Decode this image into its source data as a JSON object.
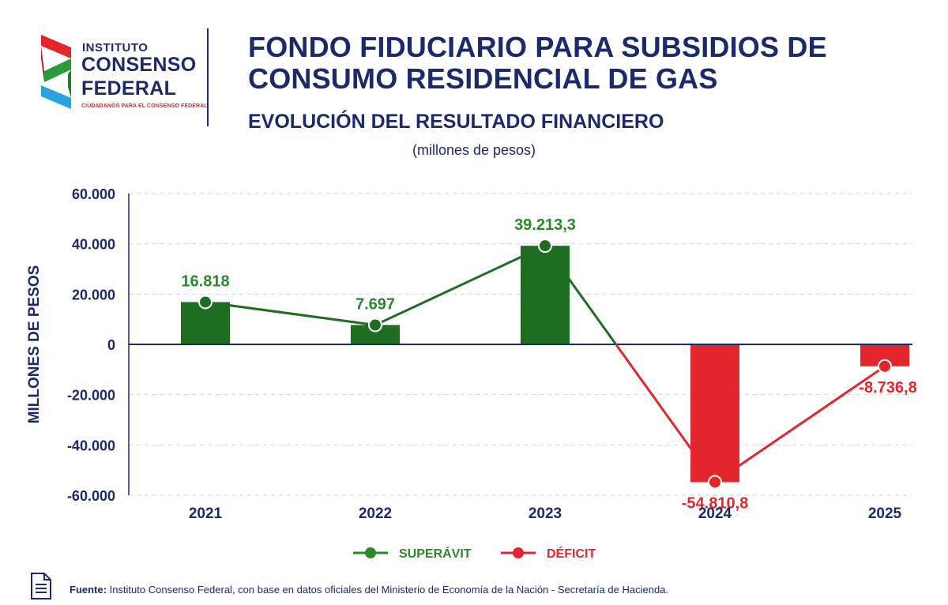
{
  "logo": {
    "line1": "INSTITUTO",
    "line2": "CONSENSO",
    "line3": "FEDERAL",
    "tagline": "CIUDADANOS PARA EL CONSENSO FEDERAL",
    "icon": "ribbon-logo-icon"
  },
  "header": {
    "title": "FONDO FIDUCIARIO PARA SUBSIDIOS DE CONSUMO RESIDENCIAL DE GAS",
    "subtitle": "EVOLUCIÓN DEL RESULTADO FINANCIERO",
    "units": "(millones de pesos)"
  },
  "colors": {
    "navy": "#1a2a6c",
    "green": "#2a8a2a",
    "green_dark": "#1e6e22",
    "red": "#e3262b",
    "grid": "#cfd4e0"
  },
  "chart_data": {
    "type": "bar",
    "categories": [
      "2021",
      "2022",
      "2023",
      "2024",
      "2025"
    ],
    "series": [
      {
        "values": [
          16818,
          7697,
          39213.3,
          -54810.8,
          -8736.8
        ]
      }
    ],
    "data_labels": [
      "16.818",
      "7.697",
      "39.213,3",
      "-54.810,8",
      "-8.736,8"
    ],
    "ylabel": "MILLONES DE PESOS",
    "ylim": [
      -60000,
      60000
    ],
    "yticks": [
      60000,
      40000,
      20000,
      0,
      -20000,
      -40000,
      -60000
    ],
    "ytick_labels": [
      "60.000",
      "40.000",
      "20.000",
      "0",
      "-20.000",
      "-40.000",
      "-60.000"
    ],
    "overlay": "line",
    "grid": true,
    "legend_position": "bottom-center",
    "legend": [
      {
        "label": "SUPERÁVIT",
        "color": "#2a8a2a"
      },
      {
        "label": "DÉFICIT",
        "color": "#e3262b"
      }
    ]
  },
  "footer": {
    "source_label": "Fuente:",
    "source_text": "Instituto Consenso Federal, con base en datos oficiales del Ministerio de Economía de la Nación - Secretaría de Hacienda.",
    "icon": "document-icon"
  }
}
